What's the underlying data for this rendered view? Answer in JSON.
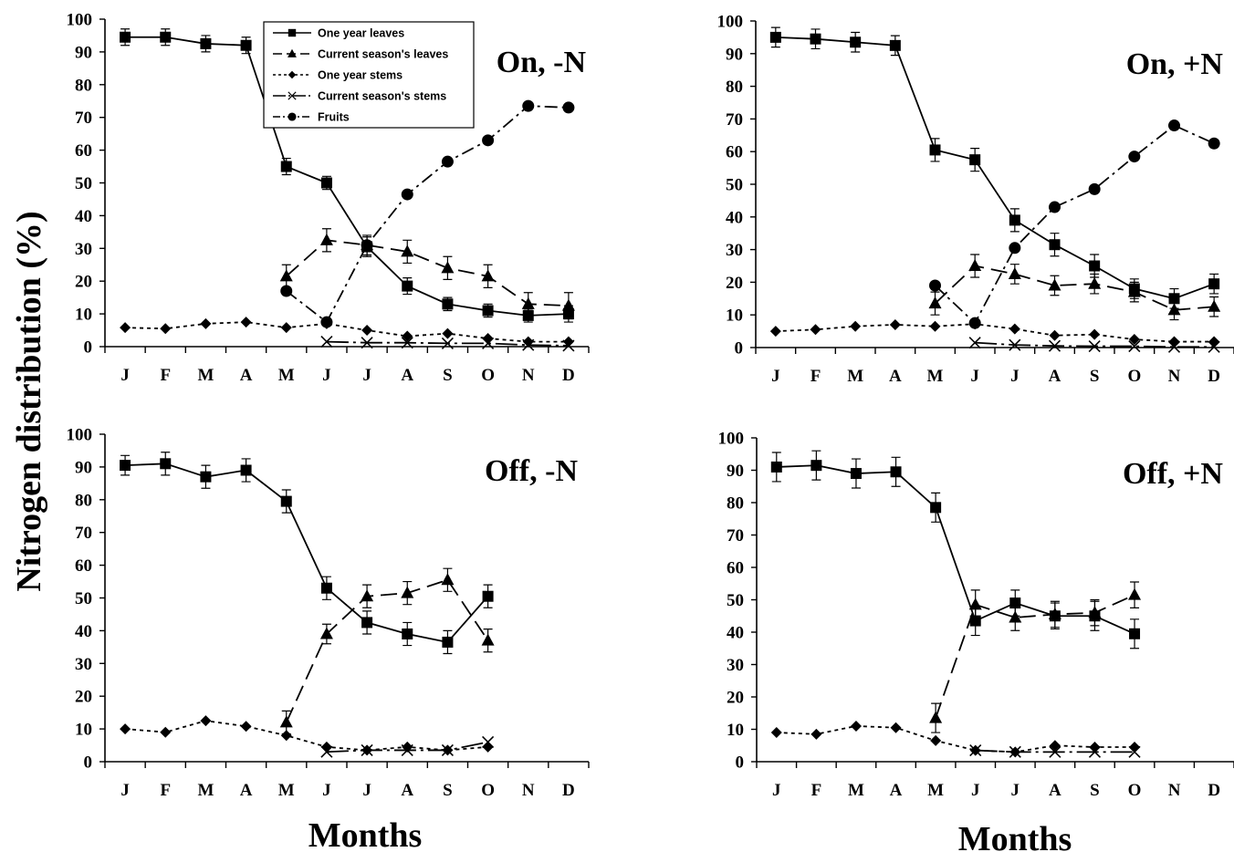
{
  "figure": {
    "ylabel": "Nitrogen distribution (%)",
    "xlabel": "Months"
  },
  "legend": [
    {
      "key": "one_year_leaves",
      "label": "One year leaves"
    },
    {
      "key": "current_leaves",
      "label": "Current season's leaves"
    },
    {
      "key": "one_year_stems",
      "label": "One year stems"
    },
    {
      "key": "current_stems",
      "label": "Current season's stems"
    },
    {
      "key": "fruits",
      "label": "Fruits"
    }
  ],
  "styles": {
    "one_year_leaves": {
      "marker": "square",
      "dash": "",
      "color": "#000000"
    },
    "current_leaves": {
      "marker": "triangle",
      "dash": "18 8",
      "color": "#000000"
    },
    "one_year_stems": {
      "marker": "diamond",
      "dash": "4 4",
      "color": "#000000"
    },
    "current_stems": {
      "marker": "x",
      "dash": "24 5 3 5",
      "color": "#000000"
    },
    "fruits": {
      "marker": "circle",
      "dash": "14 5 3 5",
      "color": "#000000"
    }
  },
  "chart_data": [
    {
      "type": "line",
      "title": "On, -N",
      "categories": [
        "J",
        "F",
        "M",
        "A",
        "M",
        "J",
        "J",
        "A",
        "S",
        "O",
        "N",
        "D"
      ],
      "ylim": [
        0,
        100
      ],
      "yticks": [
        0,
        10,
        20,
        30,
        40,
        50,
        60,
        70,
        80,
        90,
        100
      ],
      "series": [
        {
          "key": "one_year_leaves",
          "name": "One year leaves",
          "values": [
            94.5,
            94.5,
            92.5,
            92,
            55,
            50,
            30.5,
            18.5,
            13,
            11,
            9.5,
            10
          ],
          "err": [
            2.5,
            2.5,
            2.5,
            2.5,
            2.5,
            2,
            3,
            2.5,
            2,
            2,
            2,
            2.5
          ]
        },
        {
          "key": "current_leaves",
          "name": "Current season's leaves",
          "values": [
            null,
            null,
            null,
            null,
            21.5,
            32.5,
            31,
            29,
            24,
            21.5,
            13,
            12.5
          ],
          "err": [
            null,
            null,
            null,
            null,
            3.5,
            3.5,
            3,
            3.5,
            3.5,
            3.5,
            3.5,
            4
          ]
        },
        {
          "key": "one_year_stems",
          "name": "One year stems",
          "values": [
            5.8,
            5.5,
            7,
            7.5,
            5.8,
            7,
            5,
            3.2,
            4,
            2.5,
            1.5,
            1.5
          ],
          "err": null
        },
        {
          "key": "current_stems",
          "name": "Current season's stems",
          "values": [
            null,
            null,
            null,
            null,
            null,
            1.5,
            1.2,
            1.2,
            1,
            1,
            0.5,
            0.3
          ],
          "err": null
        },
        {
          "key": "fruits",
          "name": "Fruits",
          "values": [
            null,
            null,
            null,
            null,
            17,
            7.5,
            31,
            46.5,
            56.5,
            63,
            73.5,
            73
          ],
          "err": null
        }
      ]
    },
    {
      "type": "line",
      "title": "On, +N",
      "categories": [
        "J",
        "F",
        "M",
        "A",
        "M",
        "J",
        "J",
        "A",
        "S",
        "O",
        "N",
        "D"
      ],
      "ylim": [
        0,
        100
      ],
      "yticks": [
        0,
        10,
        20,
        30,
        40,
        50,
        60,
        70,
        80,
        90,
        100
      ],
      "series": [
        {
          "key": "one_year_leaves",
          "name": "One year leaves",
          "values": [
            95,
            94.5,
            93.5,
            92.5,
            60.5,
            57.5,
            39,
            31.5,
            25,
            18,
            15,
            19.5
          ],
          "err": [
            3,
            3,
            3,
            3,
            3.5,
            3.5,
            3.5,
            3.5,
            3.5,
            3,
            3,
            3
          ]
        },
        {
          "key": "current_leaves",
          "name": "Current season's leaves",
          "values": [
            null,
            null,
            null,
            null,
            13.5,
            25,
            22.5,
            19,
            19.5,
            17,
            11.5,
            12.5
          ],
          "err": [
            null,
            null,
            null,
            null,
            3.5,
            3.5,
            3,
            3,
            3,
            3,
            3,
            3
          ]
        },
        {
          "key": "one_year_stems",
          "name": "One year stems",
          "values": [
            5,
            5.5,
            6.5,
            7,
            6.5,
            7.2,
            5.7,
            3.7,
            4,
            2.5,
            1.8,
            1.8
          ],
          "err": null
        },
        {
          "key": "current_stems",
          "name": "Current season's stems",
          "values": [
            null,
            null,
            null,
            null,
            null,
            1.5,
            0.8,
            0.5,
            0.4,
            0.4,
            0.2,
            0.2
          ],
          "err": null
        },
        {
          "key": "fruits",
          "name": "Fruits",
          "values": [
            null,
            null,
            null,
            null,
            19,
            7.5,
            30.5,
            43,
            48.5,
            58.5,
            68,
            62.5
          ],
          "err": null
        }
      ]
    },
    {
      "type": "line",
      "title": "Off, -N",
      "categories": [
        "J",
        "F",
        "M",
        "A",
        "M",
        "J",
        "J",
        "A",
        "S",
        "O",
        "N",
        "D"
      ],
      "ylim": [
        0,
        100
      ],
      "yticks": [
        0,
        10,
        20,
        30,
        40,
        50,
        60,
        70,
        80,
        90,
        100
      ],
      "series": [
        {
          "key": "one_year_leaves",
          "name": "One year leaves",
          "values": [
            90.5,
            91,
            87,
            89,
            79.5,
            53,
            42.5,
            39,
            36.5,
            50.5,
            null,
            null
          ],
          "err": [
            3,
            3.5,
            3.5,
            3.5,
            3.5,
            3.5,
            3.5,
            3.5,
            3.5,
            3.5,
            null,
            null
          ]
        },
        {
          "key": "current_leaves",
          "name": "Current season's leaves",
          "values": [
            null,
            null,
            null,
            null,
            12,
            39,
            50.5,
            51.5,
            55.5,
            37,
            null,
            null
          ],
          "err": [
            null,
            null,
            null,
            null,
            3.5,
            3,
            3.5,
            3.5,
            3.5,
            3.5,
            null,
            null
          ]
        },
        {
          "key": "one_year_stems",
          "name": "One year stems",
          "values": [
            10,
            9,
            12.5,
            10.8,
            8,
            4.5,
            3.5,
            4.5,
            3.5,
            4.5,
            null,
            null
          ],
          "err": null
        },
        {
          "key": "current_stems",
          "name": "Current season's stems",
          "values": [
            null,
            null,
            null,
            null,
            null,
            3,
            3.5,
            3.5,
            3.5,
            6,
            null,
            null
          ],
          "err": null
        }
      ]
    },
    {
      "type": "line",
      "title": "Off, +N",
      "categories": [
        "J",
        "F",
        "M",
        "A",
        "M",
        "J",
        "J",
        "A",
        "S",
        "O",
        "N",
        "D"
      ],
      "ylim": [
        0,
        100
      ],
      "yticks": [
        0,
        10,
        20,
        30,
        40,
        50,
        60,
        70,
        80,
        90,
        100
      ],
      "series": [
        {
          "key": "one_year_leaves",
          "name": "One year leaves",
          "values": [
            91,
            91.5,
            89,
            89.5,
            78.5,
            43.5,
            49,
            45,
            45,
            39.5,
            null,
            null
          ],
          "err": [
            4.5,
            4.5,
            4.5,
            4.5,
            4.5,
            4.5,
            4,
            4,
            4.5,
            4.5,
            null,
            null
          ]
        },
        {
          "key": "current_leaves",
          "name": "Current season's leaves",
          "values": [
            null,
            null,
            null,
            null,
            13.5,
            48.5,
            44.5,
            45.5,
            46,
            51.5,
            null,
            null
          ],
          "err": [
            null,
            null,
            null,
            null,
            4.5,
            4.5,
            4,
            4,
            4,
            4,
            null,
            null
          ]
        },
        {
          "key": "one_year_stems",
          "name": "One year stems",
          "values": [
            9,
            8.5,
            11,
            10.5,
            6.5,
            3.5,
            3,
            5,
            4.5,
            4.5,
            null,
            null
          ],
          "err": null
        },
        {
          "key": "current_stems",
          "name": "Current season's stems",
          "values": [
            null,
            null,
            null,
            null,
            null,
            3.5,
            3,
            3,
            3,
            3,
            null,
            null
          ],
          "err": null
        }
      ]
    }
  ]
}
